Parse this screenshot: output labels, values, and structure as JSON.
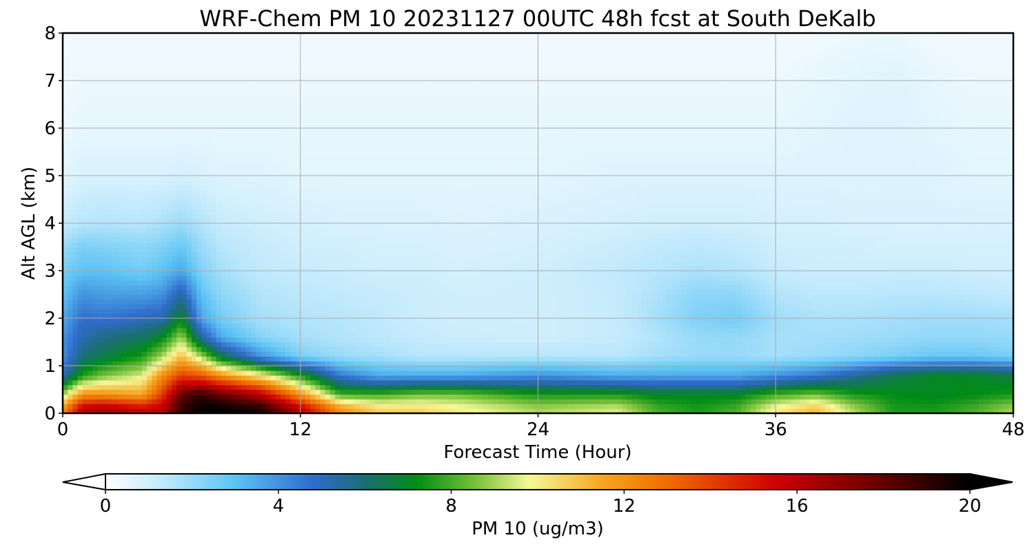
{
  "chart_data": {
    "type": "heatmap",
    "title": "WRF-Chem PM 10  20231127 00UTC 48h fcst at South DeKalb",
    "xlabel": "Forecast Time (Hour)",
    "ylabel": "Alt AGL (km)",
    "xlim": [
      0,
      48
    ],
    "ylim": [
      0,
      8
    ],
    "xticks": [
      "0",
      "12",
      "24",
      "36",
      "48"
    ],
    "yticks": [
      "0",
      "1",
      "2",
      "3",
      "4",
      "5",
      "6",
      "7",
      "8"
    ],
    "grid": true,
    "colorbar": {
      "label": "PM 10  (ug/m3)",
      "range": [
        0,
        20
      ],
      "ticks": [
        "0",
        "4",
        "8",
        "12",
        "16",
        "20"
      ],
      "extend": "both",
      "stops": [
        {
          "v": 0,
          "c": "#ffffff"
        },
        {
          "v": 1.5,
          "c": "#b8e6fb"
        },
        {
          "v": 3,
          "c": "#5cc3f4"
        },
        {
          "v": 4.8,
          "c": "#2f6ccc"
        },
        {
          "v": 6,
          "c": "#1c6d74"
        },
        {
          "v": 7.2,
          "c": "#008c14"
        },
        {
          "v": 8.6,
          "c": "#7cc23c"
        },
        {
          "v": 9.8,
          "c": "#f6f89a"
        },
        {
          "v": 11.5,
          "c": "#f5a623"
        },
        {
          "v": 13,
          "c": "#ef6d00"
        },
        {
          "v": 15.5,
          "c": "#d00000"
        },
        {
          "v": 17.5,
          "c": "#7a0000"
        },
        {
          "v": 20,
          "c": "#000000"
        }
      ]
    },
    "hours": [
      0,
      1,
      2,
      4,
      5,
      6,
      7,
      8,
      10,
      12,
      14,
      16,
      18,
      20,
      24,
      28,
      30,
      32,
      34,
      36,
      38,
      40,
      42,
      44,
      46,
      48
    ],
    "levels_km": [
      0.1,
      0.4,
      0.8,
      1.2,
      1.6,
      2.0,
      2.5,
      3.0,
      3.5,
      4.0,
      5.0,
      6.0,
      7.0,
      8.0
    ],
    "values": [
      [
        12,
        16,
        16.5,
        15.5,
        16,
        19,
        20,
        20,
        19.5,
        16,
        12,
        10.5,
        10.5,
        10,
        9,
        9.5,
        8,
        7.5,
        8,
        10,
        11,
        9,
        7.5,
        7.5,
        8,
        9
      ],
      [
        9,
        12,
        12,
        11.5,
        14,
        18,
        19,
        18,
        16,
        12,
        8,
        8,
        8.5,
        8.5,
        7.5,
        7.5,
        7,
        7,
        7,
        8,
        8.5,
        7.5,
        7.2,
        7,
        7.2,
        7.5
      ],
      [
        5,
        7.5,
        8.5,
        9.5,
        12,
        14,
        13.5,
        12,
        10,
        7.5,
        4.5,
        3.5,
        3.5,
        3.5,
        4,
        3.5,
        3.5,
        3.5,
        3.5,
        4,
        4.5,
        5.5,
        6.5,
        7,
        7,
        6.5
      ],
      [
        4,
        6,
        6.5,
        7.5,
        9,
        11,
        9,
        6.5,
        4,
        2.5,
        2,
        1.8,
        1.5,
        1.5,
        1.5,
        1.5,
        1.8,
        2,
        2,
        1.8,
        2,
        2.2,
        2.5,
        2.8,
        2.8,
        2.5
      ],
      [
        4,
        5.2,
        5.8,
        6.3,
        7,
        9,
        5.5,
        3.5,
        2.3,
        1.8,
        1.6,
        1.4,
        1.2,
        1.1,
        1,
        1.2,
        1.6,
        2,
        2.1,
        1.8,
        1.8,
        1.9,
        2,
        2.1,
        2.1,
        2
      ],
      [
        3.5,
        4.8,
        4.6,
        5,
        5.2,
        7,
        3.6,
        2.6,
        1.8,
        1.6,
        1.5,
        1.3,
        1.1,
        1,
        1,
        1.2,
        1.8,
        2.4,
        2.6,
        1.9,
        1.7,
        1.7,
        1.8,
        1.9,
        1.9,
        1.8
      ],
      [
        3,
        4,
        3.8,
        3.8,
        4,
        5.4,
        3,
        2.2,
        1.6,
        1.4,
        1.3,
        1.2,
        1.1,
        1,
        1,
        1.2,
        1.7,
        2.2,
        2.2,
        1.6,
        1.4,
        1.4,
        1.5,
        1.5,
        1.4,
        1.3
      ],
      [
        2.5,
        3,
        3,
        2.6,
        3,
        3.6,
        2.4,
        1.8,
        1.3,
        1.2,
        1.1,
        1,
        1,
        0.9,
        1,
        1.3,
        1.5,
        1.7,
        1.6,
        1.2,
        1.1,
        1.1,
        1.1,
        1.1,
        1,
        1
      ],
      [
        2,
        2.5,
        2.4,
        2.2,
        2.4,
        2.8,
        2,
        1.5,
        1.2,
        1,
        1,
        0.9,
        0.9,
        0.8,
        0.9,
        1.1,
        1.3,
        1.4,
        1.3,
        1,
        1,
        1,
        0.9,
        0.9,
        0.9,
        0.9
      ],
      [
        1.2,
        1.5,
        1.6,
        1.5,
        1.7,
        2,
        1.6,
        1.2,
        1,
        0.9,
        0.8,
        0.8,
        0.8,
        0.7,
        0.8,
        0.9,
        1,
        1,
        1,
        0.9,
        0.9,
        0.8,
        0.8,
        0.8,
        0.8,
        0.8
      ],
      [
        0.6,
        0.8,
        0.8,
        0.8,
        0.8,
        0.9,
        0.8,
        0.7,
        0.7,
        0.6,
        0.6,
        0.6,
        0.6,
        0.6,
        0.6,
        0.7,
        0.7,
        0.7,
        0.7,
        0.7,
        0.7,
        0.7,
        0.7,
        0.7,
        0.6,
        0.6
      ],
      [
        0.4,
        0.5,
        0.5,
        0.5,
        0.5,
        0.5,
        0.5,
        0.5,
        0.5,
        0.5,
        0.5,
        0.5,
        0.5,
        0.5,
        0.5,
        0.5,
        0.5,
        0.5,
        0.5,
        0.5,
        0.6,
        0.7,
        0.7,
        0.6,
        0.5,
        0.5
      ],
      [
        0.3,
        0.4,
        0.4,
        0.4,
        0.4,
        0.4,
        0.4,
        0.4,
        0.4,
        0.4,
        0.4,
        0.4,
        0.4,
        0.4,
        0.4,
        0.4,
        0.4,
        0.4,
        0.4,
        0.4,
        0.5,
        0.6,
        0.7,
        0.5,
        0.4,
        0.4
      ],
      [
        0.3,
        0.3,
        0.3,
        0.3,
        0.3,
        0.3,
        0.3,
        0.3,
        0.3,
        0.3,
        0.3,
        0.3,
        0.3,
        0.3,
        0.3,
        0.3,
        0.3,
        0.3,
        0.3,
        0.3,
        0.3,
        0.4,
        0.4,
        0.3,
        0.3,
        0.3
      ]
    ]
  }
}
